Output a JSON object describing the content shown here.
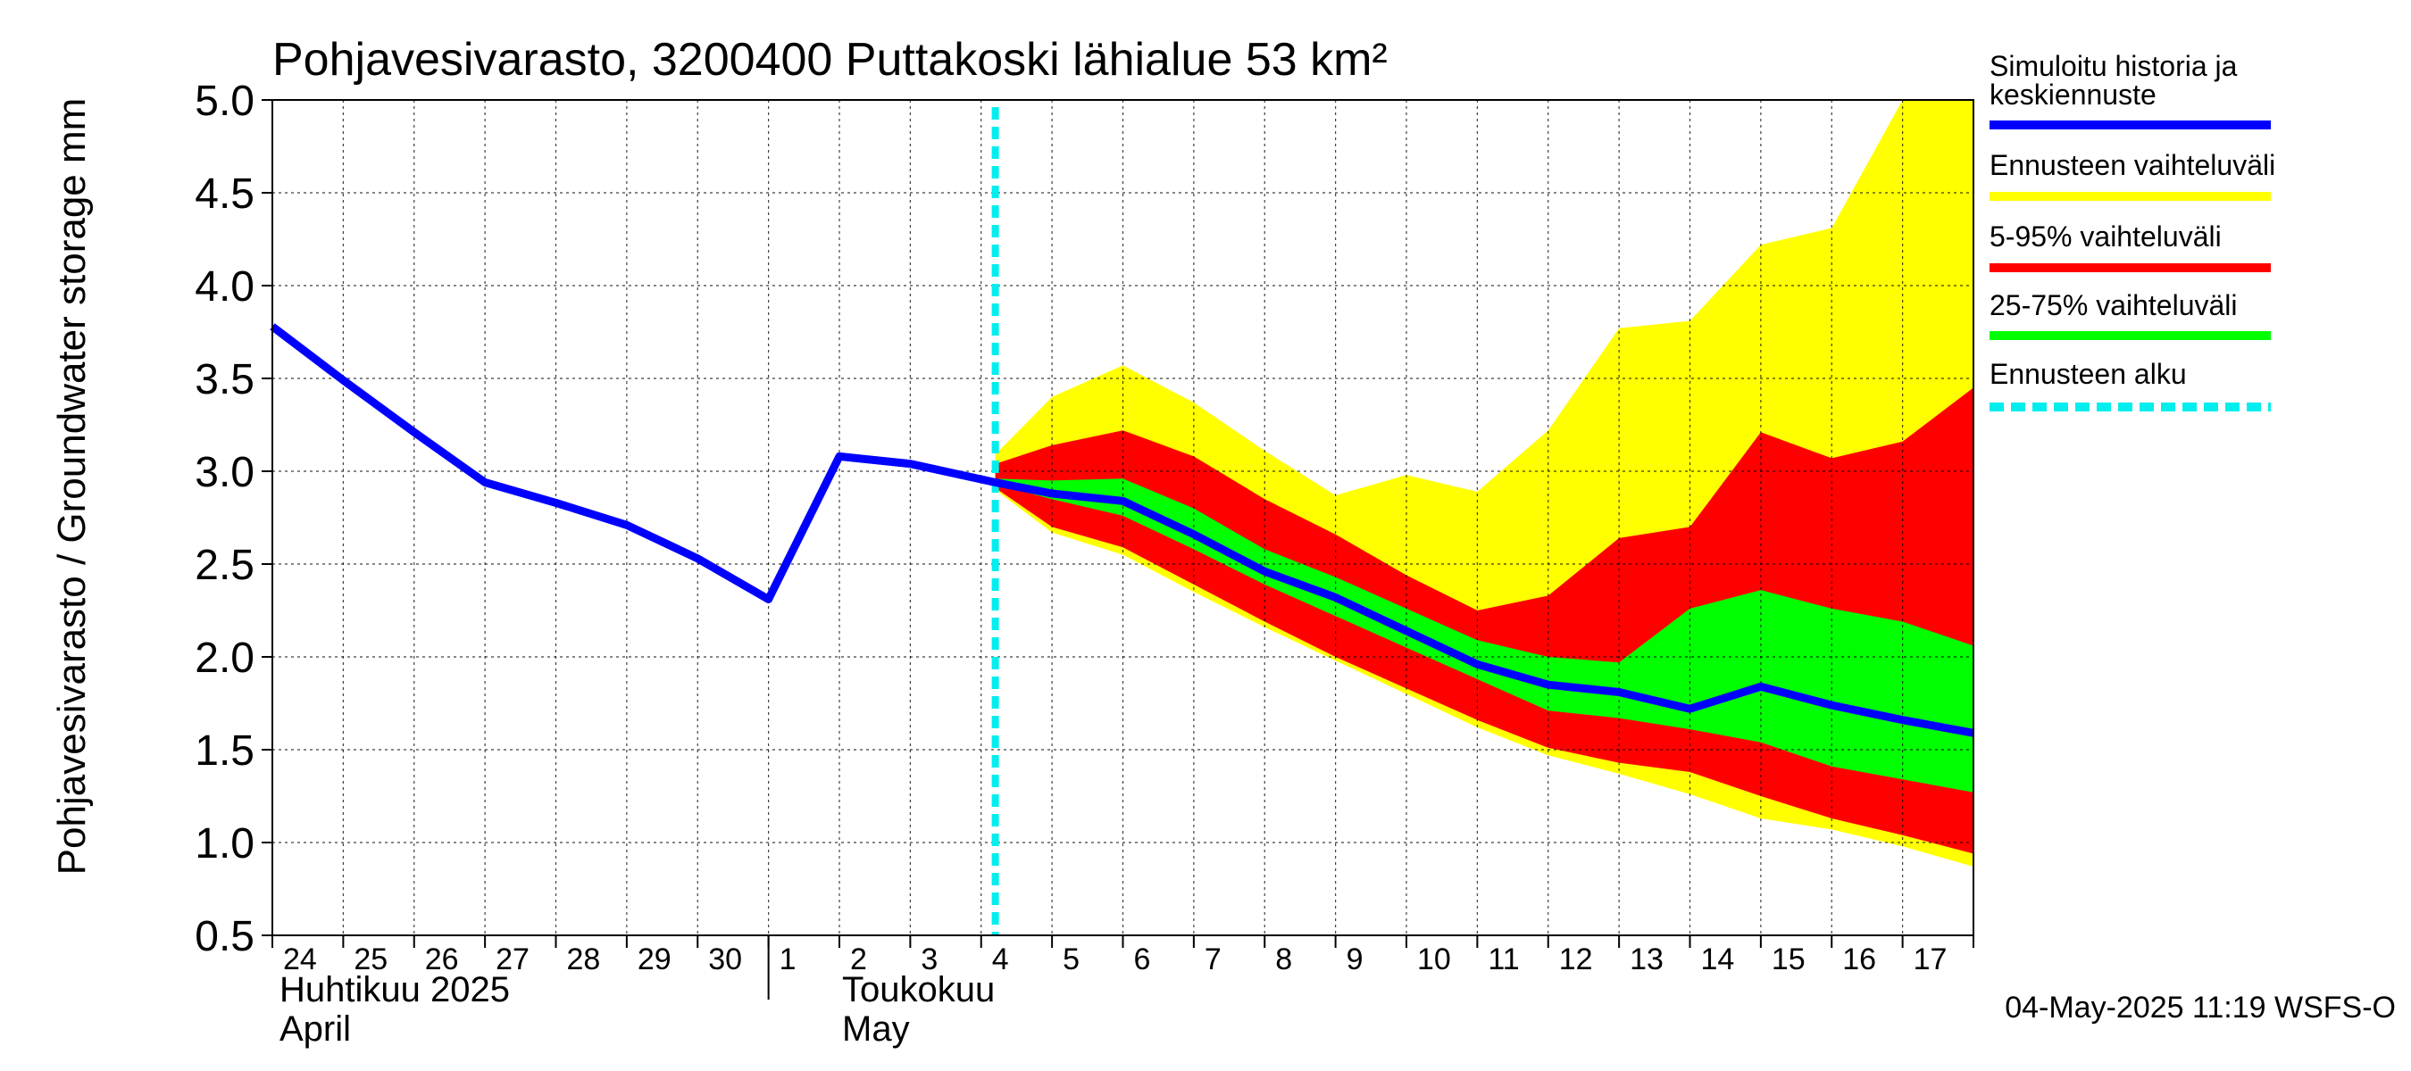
{
  "chart_data": {
    "type": "area",
    "title": "Pohjavesivarasto, 3200400 Puttakoski lähialue 53 km²",
    "ylabel": "Pohjavesivarasto / Groundwater storage   mm",
    "ylim": [
      0.5,
      5.0
    ],
    "yticks": [
      "0.5",
      "1.0",
      "1.5",
      "2.0",
      "2.5",
      "3.0",
      "3.5",
      "4.0",
      "4.5",
      "5.0"
    ],
    "xlabels": [
      "24",
      "25",
      "26",
      "27",
      "28",
      "29",
      "30",
      "1",
      "2",
      "3",
      "4",
      "5",
      "6",
      "7",
      "8",
      "9",
      "10",
      "11",
      "12",
      "13",
      "14",
      "15",
      "16",
      "17"
    ],
    "month_labels": {
      "april_fi": "Huhtikuu  2025",
      "april_en": "April",
      "may_fi": "Toukokuu",
      "may_en": "May"
    },
    "forecast_start_day": 10.2,
    "history": {
      "name": "Simuloitu historia ja keskiennuste",
      "x": [
        0,
        1,
        2,
        3,
        4,
        5,
        6,
        7,
        8,
        9,
        10.2
      ],
      "y": [
        3.78,
        3.49,
        3.21,
        2.94,
        2.83,
        2.71,
        2.53,
        2.31,
        3.08,
        3.04,
        2.94
      ]
    },
    "forecast": {
      "x": [
        10.2,
        11,
        12,
        13,
        14,
        15,
        16,
        17,
        18,
        19,
        20,
        21,
        22,
        23,
        24
      ],
      "median": [
        2.94,
        2.88,
        2.84,
        2.66,
        2.46,
        2.32,
        2.14,
        1.96,
        1.85,
        1.81,
        1.72,
        1.84,
        1.74,
        1.66,
        1.59
      ],
      "p25": [
        2.93,
        2.85,
        2.76,
        2.58,
        2.39,
        2.22,
        2.05,
        1.88,
        1.71,
        1.67,
        1.61,
        1.54,
        1.41,
        1.34,
        1.27
      ],
      "p75": [
        2.96,
        2.95,
        2.96,
        2.8,
        2.58,
        2.43,
        2.26,
        2.09,
        2.0,
        1.97,
        2.26,
        2.36,
        2.26,
        2.19,
        2.06
      ],
      "p5": [
        2.91,
        2.7,
        2.59,
        2.39,
        2.19,
        2.0,
        1.83,
        1.66,
        1.51,
        1.43,
        1.38,
        1.25,
        1.13,
        1.04,
        0.94
      ],
      "p95": [
        3.04,
        3.14,
        3.22,
        3.08,
        2.85,
        2.66,
        2.44,
        2.25,
        2.33,
        2.64,
        2.7,
        3.21,
        3.07,
        3.16,
        3.45
      ],
      "min": [
        2.9,
        2.67,
        2.55,
        2.35,
        2.16,
        1.98,
        1.8,
        1.62,
        1.47,
        1.37,
        1.26,
        1.13,
        1.07,
        0.98,
        0.87
      ],
      "max": [
        3.09,
        3.4,
        3.57,
        3.37,
        3.11,
        2.87,
        2.98,
        2.89,
        3.22,
        3.77,
        3.81,
        4.22,
        4.31,
        5.0,
        5.0
      ]
    },
    "legend": [
      {
        "label": "Simuloitu historia ja",
        "label2": "keskiennuste",
        "color": "#0000ff",
        "style": "solid"
      },
      {
        "label": "Ennusteen vaihteluväli",
        "label2": "",
        "color": "#ffff00",
        "style": "solid"
      },
      {
        "label": "5-95% vaihteluväli",
        "label2": "",
        "color": "#ff0000",
        "style": "solid"
      },
      {
        "label": "25-75% vaihteluväli",
        "label2": "",
        "color": "#00ff00",
        "style": "solid"
      },
      {
        "label": "Ennusteen alku",
        "label2": "",
        "color": "#00eeee",
        "style": "dashed"
      }
    ],
    "footer": "04-May-2025 11:19 WSFS-O"
  }
}
